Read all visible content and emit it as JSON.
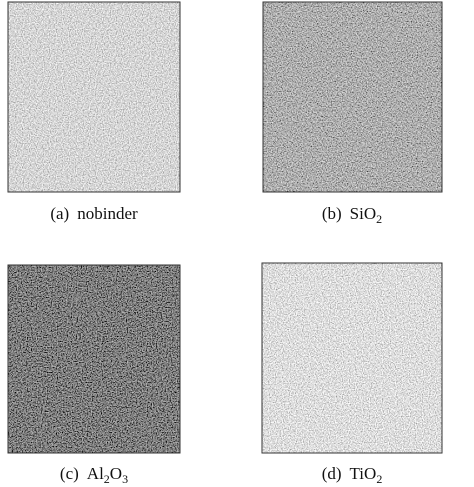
{
  "panels": [
    {
      "caption": [
        "(a)",
        "nobinder"
      ]
    },
    {
      "caption": [
        "(b)",
        "SiO",
        {
          "sub": "2"
        }
      ]
    },
    {
      "caption": [
        "(c)",
        "Al",
        {
          "sub": "2"
        },
        "O",
        {
          "sub": "3"
        }
      ]
    },
    {
      "caption": [
        "(d)",
        "TiO",
        {
          "sub": "2"
        }
      ]
    }
  ]
}
